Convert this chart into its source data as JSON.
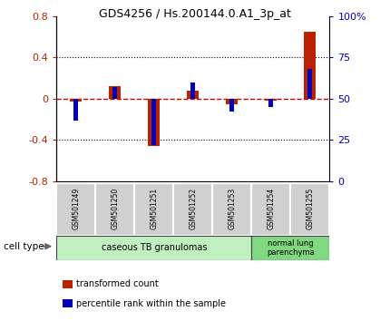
{
  "title": "GDS4256 / Hs.200144.0.A1_3p_at",
  "samples": [
    "GSM501249",
    "GSM501250",
    "GSM501251",
    "GSM501252",
    "GSM501253",
    "GSM501254",
    "GSM501255"
  ],
  "transformed_count": [
    -0.03,
    0.12,
    -0.46,
    0.08,
    -0.05,
    -0.02,
    0.65
  ],
  "percentile_rank": [
    37,
    57,
    22,
    60,
    42,
    45,
    68
  ],
  "ylim_left": [
    -0.8,
    0.8
  ],
  "ylim_right": [
    0,
    100
  ],
  "yticks_left": [
    -0.8,
    -0.4,
    0,
    0.4,
    0.8
  ],
  "yticks_right": [
    0,
    25,
    50,
    75,
    100
  ],
  "ytick_right_labels": [
    "0",
    "25",
    "50",
    "75",
    "100%"
  ],
  "red_color": "#bb2200",
  "blue_color": "#0000bb",
  "dashed_red": "#cc0000",
  "label_bg": "#d0d0d0",
  "cell_type1_color": "#c0f0c0",
  "cell_type2_color": "#80d880",
  "cell_type1_label": "caseous TB granulomas",
  "cell_type2_label": "normal lung\nparenchyma",
  "cell_type_text": "cell type",
  "legend_red_label": "transformed count",
  "legend_blue_label": "percentile rank within the sample",
  "bar_width": 0.3,
  "blue_bar_width": 0.12
}
